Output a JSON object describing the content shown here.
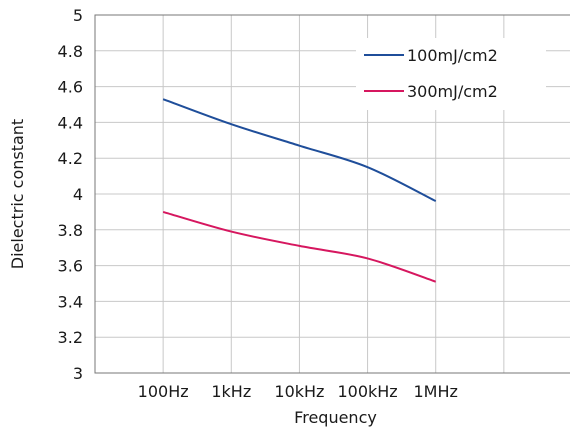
{
  "chart_data": {
    "type": "line",
    "xlabel": "Frequency",
    "ylabel": "Dielectric constant",
    "categories": [
      "100Hz",
      "1kHz",
      "10kHz",
      "100kHz",
      "1MHz"
    ],
    "ylim": [
      3,
      5
    ],
    "yticks": [
      "3",
      "3.2",
      "3.4",
      "3.6",
      "3.8",
      "4",
      "4.2",
      "4.4",
      "4.6",
      "4.8",
      "5"
    ],
    "grid": true,
    "legend_position": "top-right",
    "series": [
      {
        "name": "100mJ/cm2",
        "color": "#1f4e9a",
        "values": [
          4.53,
          4.39,
          4.27,
          4.15,
          3.96
        ]
      },
      {
        "name": "300mJ/cm2",
        "color": "#d6175f",
        "values": [
          3.9,
          3.79,
          3.71,
          3.64,
          3.51
        ]
      }
    ]
  }
}
